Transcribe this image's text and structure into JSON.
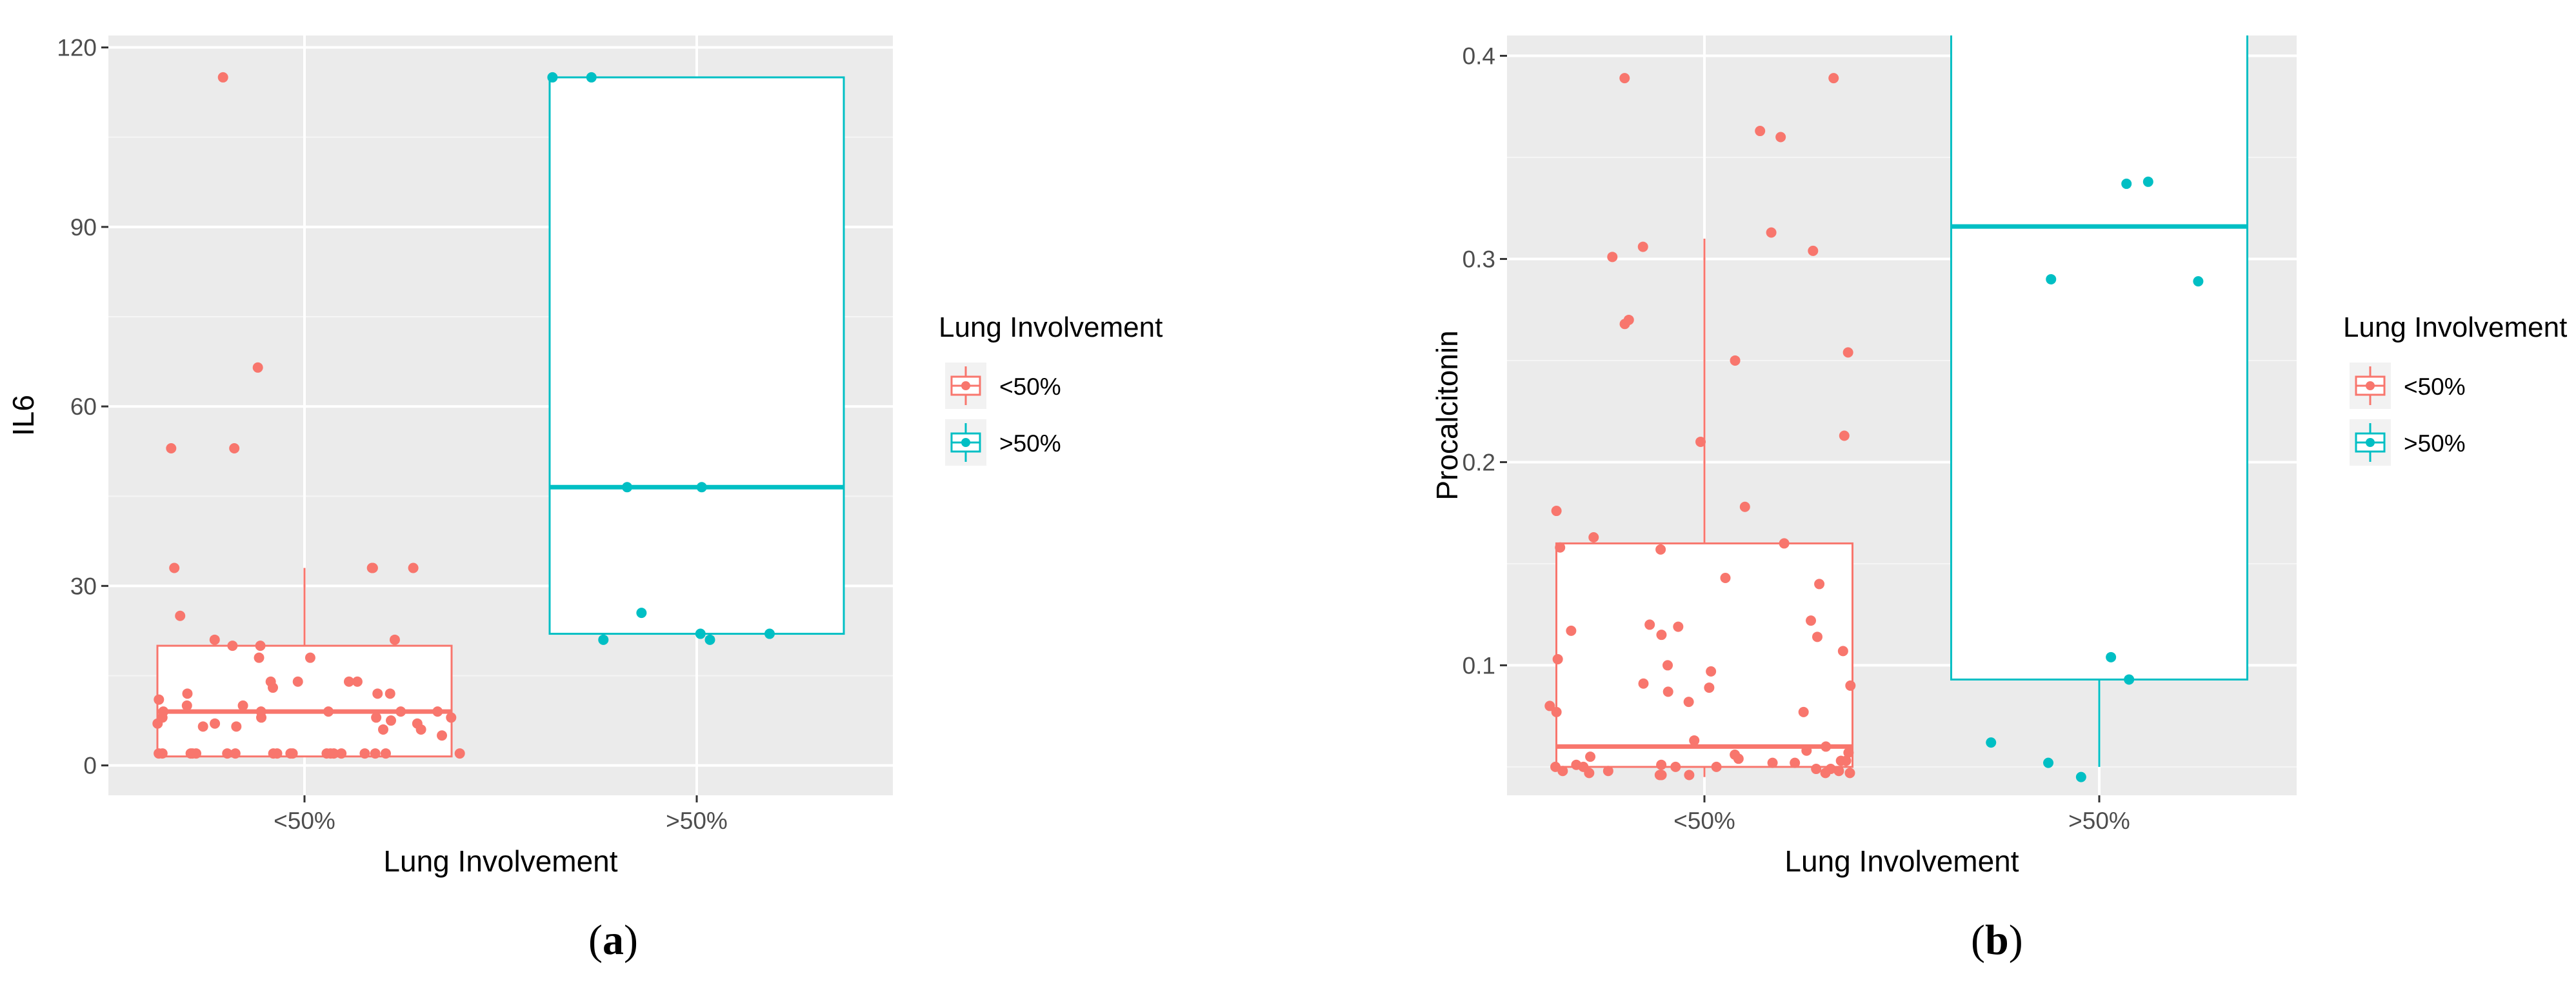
{
  "panels": [
    {
      "caption_letter": "a",
      "chart_data": {
        "type": "boxplot",
        "xlabel": "Lung Involvement",
        "ylabel": "IL6",
        "categories": [
          "<50%",
          ">50%"
        ],
        "ylim": [
          -5,
          122
        ],
        "yticks": [
          0,
          30,
          60,
          90,
          120
        ],
        "grid": true,
        "legend": {
          "title": "Lung Involvement",
          "entries": [
            "<50%",
            ">50%"
          ],
          "position": "right"
        },
        "colors": {
          "<50%": "#F8766D",
          ">50%": "#00BFC4"
        },
        "boxes": [
          {
            "category": "<50%",
            "lower_whisker": 1.5,
            "q1": 1.5,
            "median": 9,
            "q3": 20,
            "upper_whisker": 33
          },
          {
            "category": ">50%",
            "lower_whisker": 22,
            "q1": 22,
            "median": 46.5,
            "q3": 115,
            "upper_whisker": 115
          }
        ],
        "points": [
          {
            "category": "<50%",
            "values": [
              115,
              53,
              66.5,
              53,
              33,
              33,
              33,
              33,
              25,
              21,
              21,
              20,
              20,
              18,
              18,
              14,
              14,
              14,
              14,
              13,
              12,
              12,
              12,
              11,
              10,
              10,
              9,
              9,
              9,
              9,
              9,
              8,
              8,
              8,
              8,
              7.5,
              7,
              7,
              7,
              6.5,
              6.5,
              6,
              6,
              5,
              2,
              2,
              2,
              2,
              2,
              2,
              2,
              2,
              2,
              2,
              2,
              2,
              2,
              2,
              2,
              2,
              2,
              2,
              2
            ]
          },
          {
            "category": ">50%",
            "values": [
              115,
              115,
              46.5,
              46.5,
              25.5,
              22,
              22,
              21,
              21
            ]
          }
        ]
      }
    },
    {
      "caption_letter": "b",
      "chart_data": {
        "type": "boxplot",
        "xlabel": "Lung Involvement",
        "ylabel": "Procalcitonin",
        "categories": [
          "<50%",
          ">50%"
        ],
        "ylim": [
          0.036,
          0.41
        ],
        "yticks": [
          0.1,
          0.2,
          0.3,
          0.4
        ],
        "grid": true,
        "legend": {
          "title": "Lung Involvement",
          "entries": [
            "<50%",
            ">50%"
          ],
          "position": "right"
        },
        "colors": {
          "<50%": "#F8766D",
          ">50%": "#00BFC4"
        },
        "boxes": [
          {
            "category": "<50%",
            "lower_whisker": 0.045,
            "q1": 0.05,
            "median": 0.06,
            "q3": 0.16,
            "upper_whisker": 0.31
          },
          {
            "category": ">50%",
            "lower_whisker": 0.05,
            "q1": 0.093,
            "median": 0.316,
            "q3": 0.45,
            "upper_whisker": 0.45
          }
        ],
        "points": [
          {
            "category": "<50%",
            "values": [
              0.389,
              0.389,
              0.363,
              0.36,
              0.313,
              0.306,
              0.304,
              0.301,
              0.27,
              0.268,
              0.254,
              0.25,
              0.213,
              0.21,
              0.178,
              0.176,
              0.163,
              0.16,
              0.158,
              0.157,
              0.143,
              0.14,
              0.122,
              0.12,
              0.119,
              0.117,
              0.115,
              0.114,
              0.107,
              0.103,
              0.1,
              0.097,
              0.091,
              0.09,
              0.089,
              0.087,
              0.082,
              0.08,
              0.077,
              0.077,
              0.063,
              0.06,
              0.058,
              0.057,
              0.056,
              0.055,
              0.054,
              0.053,
              0.053,
              0.052,
              0.052,
              0.051,
              0.051,
              0.05,
              0.05,
              0.05,
              0.05,
              0.049,
              0.049,
              0.048,
              0.048,
              0.048,
              0.047,
              0.047,
              0.047,
              0.046,
              0.046,
              0.046
            ]
          },
          {
            "category": ">50%",
            "values": [
              0.338,
              0.337,
              0.29,
              0.289,
              0.104,
              0.093,
              0.062,
              0.052,
              0.045
            ]
          }
        ]
      }
    }
  ]
}
